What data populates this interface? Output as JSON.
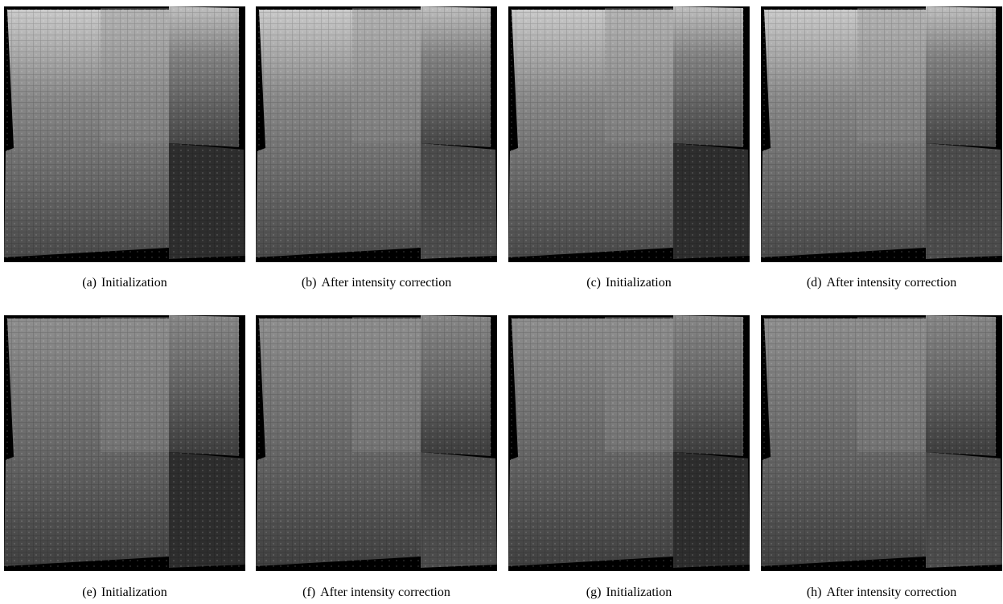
{
  "figure": {
    "panels": [
      {
        "label": "(a)",
        "caption": "Initialization"
      },
      {
        "label": "(b)",
        "caption": "After intensity correction"
      },
      {
        "label": "(c)",
        "caption": "Initialization"
      },
      {
        "label": "(d)",
        "caption": "After intensity correction"
      },
      {
        "label": "(e)",
        "caption": "Initialization"
      },
      {
        "label": "(f)",
        "caption": "After intensity correction"
      },
      {
        "label": "(g)",
        "caption": "Initialization"
      },
      {
        "label": "(h)",
        "caption": "After intensity correction"
      }
    ]
  }
}
